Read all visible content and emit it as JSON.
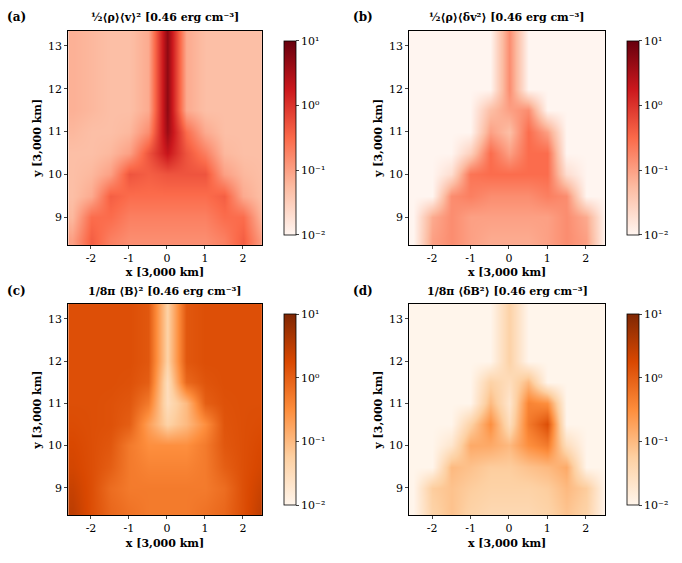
{
  "chart_data": [
    {
      "type": "heatmap",
      "panel": "(a)",
      "title": "½⟨ρ⟩⟨v⟩² [0.46 erg cm⁻³]",
      "color": "Reds",
      "log": true,
      "xlabel": "x [3,000 km]",
      "ylabel": "y [3,000 km]",
      "xlim": [
        -2.6,
        2.5
      ],
      "ylim": [
        8.35,
        13.35
      ],
      "xticks": [
        -2,
        -1,
        0,
        1,
        2
      ],
      "yticks": [
        9,
        10,
        11,
        12,
        13
      ],
      "x": [
        -2.5,
        -2,
        -1.5,
        -1,
        -0.5,
        0,
        0.5,
        1,
        1.5,
        2,
        2.5
      ],
      "y": [
        8.5,
        9,
        9.5,
        10,
        10.5,
        11,
        11.5,
        12,
        12.5,
        13,
        13.5
      ],
      "z": [
        [
          0.1,
          0.4,
          0.2,
          0.15,
          0.15,
          0.15,
          0.15,
          0.15,
          0.2,
          0.4,
          0.1
        ],
        [
          0.06,
          0.3,
          0.3,
          0.2,
          0.2,
          0.2,
          0.2,
          0.2,
          0.3,
          0.3,
          0.06
        ],
        [
          0.05,
          0.08,
          0.4,
          0.3,
          0.3,
          0.3,
          0.3,
          0.3,
          0.4,
          0.08,
          0.05
        ],
        [
          0.05,
          0.06,
          0.1,
          0.5,
          0.4,
          0.5,
          0.5,
          0.5,
          0.1,
          0.06,
          0.05
        ],
        [
          0.05,
          0.05,
          0.06,
          0.1,
          0.5,
          2.0,
          0.5,
          0.2,
          0.06,
          0.05,
          0.05
        ],
        [
          0.06,
          0.05,
          0.05,
          0.06,
          0.15,
          4,
          0.3,
          0.08,
          0.05,
          0.05,
          0.05
        ],
        [
          0.07,
          0.06,
          0.05,
          0.05,
          0.08,
          5,
          0.08,
          0.05,
          0.05,
          0.05,
          0.05
        ],
        [
          0.07,
          0.06,
          0.05,
          0.05,
          0.08,
          5,
          0.08,
          0.05,
          0.05,
          0.05,
          0.05
        ],
        [
          0.07,
          0.06,
          0.05,
          0.05,
          0.08,
          5,
          0.08,
          0.05,
          0.05,
          0.05,
          0.05
        ],
        [
          0.07,
          0.06,
          0.05,
          0.05,
          0.08,
          5,
          0.08,
          0.05,
          0.05,
          0.05,
          0.05
        ],
        [
          0.07,
          0.06,
          0.05,
          0.05,
          0.08,
          5,
          0.08,
          0.05,
          0.05,
          0.05,
          0.05
        ]
      ],
      "colorbar": {
        "lim": [
          0.01,
          10
        ],
        "ticks": [
          {
            "value": 0.01,
            "label": "10⁻²"
          },
          {
            "value": 0.1,
            "label": "10⁻¹"
          },
          {
            "value": 1,
            "label": "10⁰"
          },
          {
            "value": 10,
            "label": "10¹"
          }
        ]
      }
    },
    {
      "type": "heatmap",
      "panel": "(b)",
      "title": "½⟨ρ⟩⟨δv²⟩ [0.46 erg cm⁻³]",
      "color": "Reds",
      "log": true,
      "xlabel": "x [3,000 km]",
      "ylabel": "y [3,000 km]",
      "xlim": [
        -2.6,
        2.5
      ],
      "ylim": [
        8.35,
        13.35
      ],
      "xticks": [
        -2,
        -1,
        0,
        1,
        2
      ],
      "yticks": [
        9,
        10,
        11,
        12,
        13
      ],
      "x": [
        -2.5,
        -2,
        -1.5,
        -1,
        -0.5,
        0,
        0.5,
        1,
        1.5,
        2,
        2.5
      ],
      "y": [
        8.5,
        9,
        9.5,
        10,
        10.5,
        11,
        11.5,
        12,
        12.5,
        13,
        13.5
      ],
      "z": [
        [
          0.01,
          0.1,
          0.15,
          0.1,
          0.08,
          0.08,
          0.08,
          0.1,
          0.15,
          0.1,
          0.01
        ],
        [
          0.01,
          0.08,
          0.15,
          0.1,
          0.1,
          0.1,
          0.1,
          0.1,
          0.15,
          0.08,
          0.01
        ],
        [
          0.01,
          0.01,
          0.15,
          0.2,
          0.15,
          0.15,
          0.15,
          0.2,
          0.15,
          0.01,
          0.01
        ],
        [
          0.01,
          0.01,
          0.02,
          0.25,
          0.3,
          0.3,
          0.3,
          0.3,
          0.02,
          0.01,
          0.01
        ],
        [
          0.01,
          0.01,
          0.01,
          0.03,
          0.3,
          0.1,
          0.3,
          0.3,
          0.01,
          0.01,
          0.01
        ],
        [
          0.01,
          0.01,
          0.01,
          0.01,
          0.1,
          0.05,
          0.3,
          0.1,
          0.01,
          0.01,
          0.01
        ],
        [
          0.01,
          0.01,
          0.01,
          0.01,
          0.05,
          0.1,
          0.15,
          0.01,
          0.01,
          0.01,
          0.01
        ],
        [
          0.01,
          0.01,
          0.01,
          0.01,
          0.01,
          0.15,
          0.01,
          0.01,
          0.01,
          0.01,
          0.01
        ],
        [
          0.01,
          0.01,
          0.01,
          0.01,
          0.01,
          0.15,
          0.01,
          0.01,
          0.01,
          0.01,
          0.01
        ],
        [
          0.01,
          0.01,
          0.01,
          0.01,
          0.01,
          0.15,
          0.01,
          0.01,
          0.01,
          0.01,
          0.01
        ],
        [
          0.01,
          0.01,
          0.01,
          0.01,
          0.01,
          0.15,
          0.01,
          0.01,
          0.01,
          0.01,
          0.01
        ]
      ],
      "colorbar": {
        "lim": [
          0.01,
          10
        ],
        "ticks": [
          {
            "value": 0.01,
            "label": "10⁻²"
          },
          {
            "value": 0.1,
            "label": "10⁻¹"
          },
          {
            "value": 1,
            "label": "10⁰"
          },
          {
            "value": 10,
            "label": "10¹"
          }
        ]
      }
    },
    {
      "type": "heatmap",
      "panel": "(c)",
      "title": "1/8π ⟨B⟩² [0.46 erg cm⁻³]",
      "color": "Oranges",
      "log": true,
      "xlabel": "x [3,000 km]",
      "ylabel": "y [3,000 km]",
      "xlim": [
        -2.6,
        2.5
      ],
      "ylim": [
        8.35,
        13.35
      ],
      "xticks": [
        -2,
        -1,
        0,
        1,
        2
      ],
      "yticks": [
        9,
        10,
        11,
        12,
        13
      ],
      "x": [
        -2.5,
        -2,
        -1.5,
        -1,
        -0.5,
        0,
        0.5,
        1,
        1.5,
        2,
        2.5
      ],
      "y": [
        8.5,
        9,
        9.5,
        10,
        10.5,
        11,
        11.5,
        12,
        12.5,
        13,
        13.5
      ],
      "z": [
        [
          3,
          1.5,
          0.8,
          0.6,
          0.5,
          0.5,
          0.5,
          0.6,
          0.8,
          1.5,
          3
        ],
        [
          2.5,
          1.5,
          0.7,
          0.5,
          0.5,
          0.5,
          0.5,
          0.5,
          0.7,
          1.5,
          2.5
        ],
        [
          2,
          1.5,
          1.0,
          0.5,
          0.4,
          0.4,
          0.4,
          0.5,
          1.0,
          1.5,
          2
        ],
        [
          1.8,
          1.5,
          1.2,
          0.5,
          0.3,
          0.3,
          0.3,
          0.5,
          1.2,
          1.5,
          1.8
        ],
        [
          1.6,
          1.5,
          1.4,
          1.0,
          0.2,
          0.05,
          0.1,
          0.3,
          1.3,
          1.5,
          1.6
        ],
        [
          1.5,
          1.5,
          1.4,
          1.2,
          0.5,
          0.03,
          0.1,
          1.0,
          1.4,
          1.5,
          1.5
        ],
        [
          1.5,
          1.5,
          1.5,
          1.4,
          1.0,
          0.03,
          0.8,
          1.3,
          1.5,
          1.5,
          1.5
        ],
        [
          1.5,
          1.5,
          1.5,
          1.5,
          1.2,
          0.05,
          1.2,
          1.5,
          1.5,
          1.5,
          1.5
        ],
        [
          1.5,
          1.5,
          1.5,
          1.5,
          1.2,
          0.05,
          1.2,
          1.5,
          1.5,
          1.5,
          1.5
        ],
        [
          1.5,
          1.5,
          1.5,
          1.5,
          1.2,
          0.05,
          1.2,
          1.5,
          1.5,
          1.5,
          1.5
        ],
        [
          1.5,
          1.5,
          1.5,
          1.5,
          1.2,
          0.05,
          1.2,
          1.5,
          1.5,
          1.5,
          1.5
        ]
      ],
      "colorbar": {
        "lim": [
          0.01,
          10
        ],
        "ticks": [
          {
            "value": 0.01,
            "label": "10⁻²"
          },
          {
            "value": 0.1,
            "label": "10⁻¹"
          },
          {
            "value": 1,
            "label": "10⁰"
          },
          {
            "value": 10,
            "label": "10¹"
          }
        ]
      }
    },
    {
      "type": "heatmap",
      "panel": "(d)",
      "title": "1/8π ⟨δB²⟩ [0.46 erg cm⁻³]",
      "color": "Oranges",
      "log": true,
      "xlabel": "x [3,000 km]",
      "ylabel": "y [3,000 km]",
      "xlim": [
        -2.6,
        2.5
      ],
      "ylim": [
        8.35,
        13.35
      ],
      "xticks": [
        -2,
        -1,
        0,
        1,
        2
      ],
      "yticks": [
        9,
        10,
        11,
        12,
        13
      ],
      "x": [
        -2.5,
        -2,
        -1.5,
        -1,
        -0.5,
        0,
        0.5,
        1,
        1.5,
        2,
        2.5
      ],
      "y": [
        8.5,
        9,
        9.5,
        10,
        10.5,
        11,
        11.5,
        12,
        12.5,
        13,
        13.5
      ],
      "z": [
        [
          0.01,
          0.05,
          0.08,
          0.05,
          0.04,
          0.04,
          0.04,
          0.05,
          0.08,
          0.05,
          0.01
        ],
        [
          0.01,
          0.06,
          0.08,
          0.06,
          0.05,
          0.05,
          0.05,
          0.06,
          0.1,
          0.06,
          0.01
        ],
        [
          0.01,
          0.01,
          0.1,
          0.08,
          0.06,
          0.06,
          0.08,
          0.1,
          0.15,
          0.01,
          0.01
        ],
        [
          0.01,
          0.01,
          0.02,
          0.15,
          0.15,
          0.1,
          0.3,
          0.5,
          0.03,
          0.01,
          0.01
        ],
        [
          0.01,
          0.01,
          0.01,
          0.05,
          0.3,
          0.03,
          0.5,
          1.5,
          0.01,
          0.01,
          0.01
        ],
        [
          0.01,
          0.01,
          0.01,
          0.01,
          0.1,
          0.02,
          0.4,
          0.3,
          0.01,
          0.01,
          0.01
        ],
        [
          0.01,
          0.01,
          0.01,
          0.01,
          0.05,
          0.03,
          0.1,
          0.01,
          0.01,
          0.01,
          0.01
        ],
        [
          0.01,
          0.01,
          0.01,
          0.01,
          0.01,
          0.05,
          0.01,
          0.01,
          0.01,
          0.01,
          0.01
        ],
        [
          0.01,
          0.01,
          0.01,
          0.01,
          0.01,
          0.05,
          0.01,
          0.01,
          0.01,
          0.01,
          0.01
        ],
        [
          0.01,
          0.01,
          0.01,
          0.01,
          0.01,
          0.05,
          0.01,
          0.01,
          0.01,
          0.01,
          0.01
        ],
        [
          0.01,
          0.01,
          0.01,
          0.01,
          0.01,
          0.05,
          0.01,
          0.01,
          0.01,
          0.01,
          0.01
        ]
      ],
      "colorbar": {
        "lim": [
          0.01,
          10
        ],
        "ticks": [
          {
            "value": 0.01,
            "label": "10⁻²"
          },
          {
            "value": 0.1,
            "label": "10⁻¹"
          },
          {
            "value": 1,
            "label": "10⁰"
          },
          {
            "value": 10,
            "label": "10¹"
          }
        ]
      }
    }
  ]
}
